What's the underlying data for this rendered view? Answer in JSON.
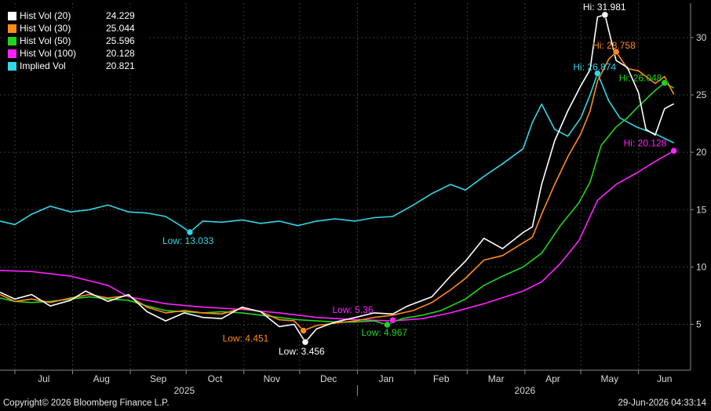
{
  "chart_data": {
    "type": "line",
    "title": "",
    "xlabel": "",
    "ylabel": "",
    "ylim": [
      1,
      33
    ],
    "y_ticks": [
      5,
      10,
      15,
      20,
      25,
      30
    ],
    "x_range": [
      "2025-06-23",
      "2026-06-29"
    ],
    "month_ticks": [
      {
        "label": "Jul",
        "date": "2025-07-01"
      },
      {
        "label": "Aug",
        "date": "2025-08-01"
      },
      {
        "label": "Sep",
        "date": "2025-09-01"
      },
      {
        "label": "Oct",
        "date": "2025-10-01"
      },
      {
        "label": "Nov",
        "date": "2025-11-01"
      },
      {
        "label": "Dec",
        "date": "2025-12-01"
      },
      {
        "label": "Jan",
        "date": "2026-01-01"
      },
      {
        "label": "Feb",
        "date": "2026-02-01"
      },
      {
        "label": "Mar",
        "date": "2026-03-01"
      },
      {
        "label": "Apr",
        "date": "2026-04-01"
      },
      {
        "label": "May",
        "date": "2026-05-01"
      },
      {
        "label": "Jun",
        "date": "2026-06-01"
      }
    ],
    "year_labels": [
      {
        "label": "2025",
        "date": "2025-09-30"
      },
      {
        "label": "2026",
        "date": "2026-04-01"
      }
    ],
    "year_divider": "2026-01-01",
    "grid": true,
    "legend_position": "top-left",
    "series": [
      {
        "name": "Hist Vol (20)",
        "last": "24.229",
        "color": "#ffffff",
        "points": [
          [
            "2025-06-23",
            7.8
          ],
          [
            "2025-07-01",
            7.2
          ],
          [
            "2025-07-10",
            7.6
          ],
          [
            "2025-07-20",
            6.6
          ],
          [
            "2025-07-31",
            7.1
          ],
          [
            "2025-08-08",
            7.9
          ],
          [
            "2025-08-20",
            7.0
          ],
          [
            "2025-08-31",
            7.6
          ],
          [
            "2025-09-10",
            6.1
          ],
          [
            "2025-09-20",
            5.3
          ],
          [
            "2025-09-30",
            6.0
          ],
          [
            "2025-10-10",
            5.6
          ],
          [
            "2025-10-20",
            5.5
          ],
          [
            "2025-10-31",
            6.5
          ],
          [
            "2025-11-10",
            6.1
          ],
          [
            "2025-11-20",
            4.8
          ],
          [
            "2025-11-28",
            5.0
          ],
          [
            "2025-12-04",
            3.456
          ],
          [
            "2025-12-10",
            4.6
          ],
          [
            "2025-12-20",
            5.2
          ],
          [
            "2025-12-31",
            5.6
          ],
          [
            "2026-01-10",
            6.0
          ],
          [
            "2026-01-20",
            5.9
          ],
          [
            "2026-01-28",
            6.6
          ],
          [
            "2026-02-10",
            7.4
          ],
          [
            "2026-02-20",
            9.2
          ],
          [
            "2026-02-28",
            10.5
          ],
          [
            "2026-03-10",
            12.5
          ],
          [
            "2026-03-20",
            11.6
          ],
          [
            "2026-03-31",
            13.0
          ],
          [
            "2026-04-05",
            13.5
          ],
          [
            "2026-04-10",
            17.2
          ],
          [
            "2026-04-17",
            21.0
          ],
          [
            "2026-04-24",
            23.6
          ],
          [
            "2026-05-01",
            25.8
          ],
          [
            "2026-05-06",
            27.2
          ],
          [
            "2026-05-10",
            31.8
          ],
          [
            "2026-05-14",
            31.981
          ],
          [
            "2026-05-20",
            28.0
          ],
          [
            "2026-05-26",
            27.4
          ],
          [
            "2026-06-01",
            25.2
          ],
          [
            "2026-06-05",
            22.0
          ],
          [
            "2026-06-10",
            21.5
          ],
          [
            "2026-06-15",
            23.8
          ],
          [
            "2026-06-20",
            24.229
          ]
        ]
      },
      {
        "name": "Hist Vol (30)",
        "last": "25.044",
        "color": "#ff8c1a",
        "points": [
          [
            "2025-06-23",
            7.6
          ],
          [
            "2025-07-01",
            7.0
          ],
          [
            "2025-07-10",
            7.2
          ],
          [
            "2025-07-20",
            6.9
          ],
          [
            "2025-07-31",
            7.3
          ],
          [
            "2025-08-10",
            7.6
          ],
          [
            "2025-08-20",
            7.3
          ],
          [
            "2025-08-31",
            7.5
          ],
          [
            "2025-09-10",
            6.5
          ],
          [
            "2025-09-20",
            6.0
          ],
          [
            "2025-09-30",
            6.2
          ],
          [
            "2025-10-10",
            6.0
          ],
          [
            "2025-10-20",
            5.9
          ],
          [
            "2025-10-31",
            6.4
          ],
          [
            "2025-11-10",
            6.1
          ],
          [
            "2025-11-20",
            5.4
          ],
          [
            "2025-11-28",
            5.3
          ],
          [
            "2025-12-03",
            4.451
          ],
          [
            "2025-12-10",
            4.9
          ],
          [
            "2025-12-20",
            5.1
          ],
          [
            "2025-12-31",
            5.3
          ],
          [
            "2026-01-10",
            5.6
          ],
          [
            "2026-01-20",
            5.8
          ],
          [
            "2026-01-31",
            6.2
          ],
          [
            "2026-02-10",
            6.9
          ],
          [
            "2026-02-20",
            8.0
          ],
          [
            "2026-02-28",
            9.0
          ],
          [
            "2026-03-10",
            10.6
          ],
          [
            "2026-03-20",
            11.0
          ],
          [
            "2026-03-31",
            12.1
          ],
          [
            "2026-04-05",
            12.6
          ],
          [
            "2026-04-10",
            14.6
          ],
          [
            "2026-04-17",
            17.2
          ],
          [
            "2026-04-24",
            19.6
          ],
          [
            "2026-05-01",
            21.6
          ],
          [
            "2026-05-06",
            23.6
          ],
          [
            "2026-05-10",
            26.2
          ],
          [
            "2026-05-16",
            28.1
          ],
          [
            "2026-05-20",
            28.758
          ],
          [
            "2026-05-26",
            27.3
          ],
          [
            "2026-06-01",
            27.1
          ],
          [
            "2026-06-10",
            26.0
          ],
          [
            "2026-06-15",
            26.6
          ],
          [
            "2026-06-20",
            25.044
          ]
        ]
      },
      {
        "name": "Hist Vol (50)",
        "last": "25.596",
        "color": "#22d322",
        "points": [
          [
            "2025-06-23",
            7.3
          ],
          [
            "2025-07-01",
            7.0
          ],
          [
            "2025-07-10",
            6.9
          ],
          [
            "2025-07-20",
            7.0
          ],
          [
            "2025-07-31",
            7.2
          ],
          [
            "2025-08-10",
            7.4
          ],
          [
            "2025-08-20",
            7.2
          ],
          [
            "2025-08-31",
            7.1
          ],
          [
            "2025-09-10",
            6.6
          ],
          [
            "2025-09-20",
            6.2
          ],
          [
            "2025-09-30",
            6.1
          ],
          [
            "2025-10-10",
            6.0
          ],
          [
            "2025-10-20",
            6.1
          ],
          [
            "2025-10-31",
            6.0
          ],
          [
            "2025-11-10",
            5.8
          ],
          [
            "2025-11-20",
            5.6
          ],
          [
            "2025-11-30",
            5.4
          ],
          [
            "2025-12-10",
            5.3
          ],
          [
            "2025-12-20",
            5.2
          ],
          [
            "2025-12-31",
            5.2
          ],
          [
            "2026-01-10",
            5.3
          ],
          [
            "2026-01-17",
            4.967
          ],
          [
            "2026-01-25",
            5.5
          ],
          [
            "2026-02-05",
            5.8
          ],
          [
            "2026-02-15",
            6.2
          ],
          [
            "2026-02-28",
            7.2
          ],
          [
            "2026-03-10",
            8.4
          ],
          [
            "2026-03-20",
            9.2
          ],
          [
            "2026-03-31",
            10.0
          ],
          [
            "2026-04-10",
            11.2
          ],
          [
            "2026-04-20",
            13.6
          ],
          [
            "2026-04-30",
            15.6
          ],
          [
            "2026-05-06",
            17.4
          ],
          [
            "2026-05-12",
            20.6
          ],
          [
            "2026-05-20",
            22.2
          ],
          [
            "2026-05-26",
            23.0
          ],
          [
            "2026-06-01",
            24.0
          ],
          [
            "2026-06-10",
            25.4
          ],
          [
            "2026-06-15",
            26.048
          ],
          [
            "2026-06-20",
            25.596
          ]
        ]
      },
      {
        "name": "Hist Vol (100)",
        "last": "20.128",
        "color": "#ff22ff",
        "points": [
          [
            "2025-06-23",
            9.7
          ],
          [
            "2025-07-10",
            9.6
          ],
          [
            "2025-07-31",
            9.2
          ],
          [
            "2025-08-20",
            8.4
          ],
          [
            "2025-08-31",
            7.4
          ],
          [
            "2025-09-20",
            6.8
          ],
          [
            "2025-10-10",
            6.5
          ],
          [
            "2025-10-31",
            6.3
          ],
          [
            "2025-11-20",
            6.0
          ],
          [
            "2025-12-10",
            5.6
          ],
          [
            "2025-12-31",
            5.4
          ],
          [
            "2026-01-20",
            5.3
          ],
          [
            "2026-02-05",
            5.5
          ],
          [
            "2026-02-20",
            6.0
          ],
          [
            "2026-03-10",
            6.8
          ],
          [
            "2026-03-31",
            7.9
          ],
          [
            "2026-04-10",
            8.7
          ],
          [
            "2026-04-20",
            10.3
          ],
          [
            "2026-04-30",
            12.3
          ],
          [
            "2026-05-10",
            15.8
          ],
          [
            "2026-05-20",
            17.2
          ],
          [
            "2026-05-31",
            18.2
          ],
          [
            "2026-06-10",
            19.2
          ],
          [
            "2026-06-20",
            20.128
          ]
        ]
      },
      {
        "name": "Implied Vol",
        "last": "20.821",
        "color": "#33d6e6",
        "points": [
          [
            "2025-06-23",
            14.0
          ],
          [
            "2025-07-01",
            13.7
          ],
          [
            "2025-07-10",
            14.6
          ],
          [
            "2025-07-20",
            15.3
          ],
          [
            "2025-07-31",
            14.8
          ],
          [
            "2025-08-10",
            15.0
          ],
          [
            "2025-08-20",
            15.4
          ],
          [
            "2025-08-31",
            14.8
          ],
          [
            "2025-09-10",
            14.7
          ],
          [
            "2025-09-20",
            14.4
          ],
          [
            "2025-09-28",
            13.6
          ],
          [
            "2025-10-03",
            13.033
          ],
          [
            "2025-10-10",
            14.0
          ],
          [
            "2025-10-20",
            13.9
          ],
          [
            "2025-10-31",
            14.1
          ],
          [
            "2025-11-10",
            13.8
          ],
          [
            "2025-11-20",
            14.0
          ],
          [
            "2025-11-30",
            13.6
          ],
          [
            "2025-12-10",
            14.0
          ],
          [
            "2025-12-20",
            14.2
          ],
          [
            "2025-12-31",
            14.0
          ],
          [
            "2026-01-10",
            14.3
          ],
          [
            "2026-01-20",
            14.4
          ],
          [
            "2026-01-31",
            15.4
          ],
          [
            "2026-02-10",
            16.4
          ],
          [
            "2026-02-20",
            17.2
          ],
          [
            "2026-02-28",
            16.7
          ],
          [
            "2026-03-10",
            17.9
          ],
          [
            "2026-03-20",
            19.0
          ],
          [
            "2026-03-31",
            20.3
          ],
          [
            "2026-04-05",
            22.6
          ],
          [
            "2026-04-10",
            24.2
          ],
          [
            "2026-04-17",
            22.0
          ],
          [
            "2026-04-24",
            21.4
          ],
          [
            "2026-05-01",
            23.0
          ],
          [
            "2026-05-06",
            25.0
          ],
          [
            "2026-05-10",
            26.874
          ],
          [
            "2026-05-16",
            24.5
          ],
          [
            "2026-05-22",
            23.0
          ],
          [
            "2026-05-31",
            22.2
          ],
          [
            "2026-06-10",
            21.6
          ],
          [
            "2026-06-20",
            20.821
          ]
        ]
      }
    ],
    "annotations": [
      {
        "series": 0,
        "kind": "hi",
        "text": "Hi: 31.981",
        "date": "2026-05-14",
        "value": 31.981
      },
      {
        "series": 0,
        "kind": "low",
        "text": "Low: 3.456",
        "date": "2025-12-04",
        "value": 3.456
      },
      {
        "series": 1,
        "kind": "hi",
        "text": "Hi: 28.758",
        "date": "2026-05-20",
        "value": 28.758
      },
      {
        "series": 1,
        "kind": "low",
        "text": "Low: 4.451",
        "date": "2025-12-03",
        "value": 4.451
      },
      {
        "series": 2,
        "kind": "hi",
        "text": "Hi: 26.048",
        "date": "2026-06-15",
        "value": 26.048
      },
      {
        "series": 2,
        "kind": "low",
        "text": "Low: 4.967",
        "date": "2026-01-17",
        "value": 4.967
      },
      {
        "series": 3,
        "kind": "hi",
        "text": "Hi: 20.128",
        "date": "2026-06-20",
        "value": 20.128
      },
      {
        "series": 3,
        "kind": "low",
        "text": "Low: 5.36",
        "date": "2026-01-20",
        "value": 5.36
      },
      {
        "series": 4,
        "kind": "hi",
        "text": "Hi: 26.874",
        "date": "2026-05-10",
        "value": 26.874
      },
      {
        "series": 4,
        "kind": "low",
        "text": "Low: 13.033",
        "date": "2025-10-03",
        "value": 13.033
      }
    ]
  },
  "footer": {
    "copyright": "Copyright© 2026 Bloomberg Finance L.P.",
    "timestamp": "29-Jun-2026 04:33:14"
  }
}
